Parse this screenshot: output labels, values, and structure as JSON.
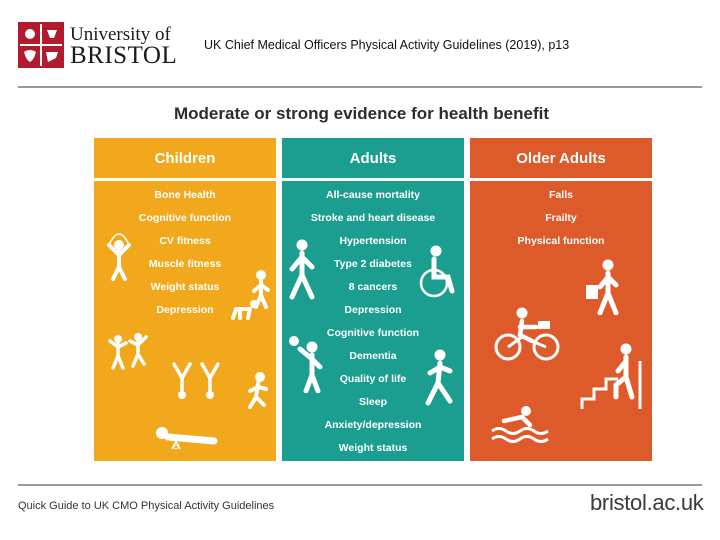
{
  "header": {
    "logo_line1": "University of",
    "logo_line2": "BRISTOL",
    "citation": "UK Chief Medical Officers Physical Activity Guidelines (2019), p13"
  },
  "infographic": {
    "title": "Moderate or strong evidence for health benefit",
    "columns": [
      {
        "heading": "Children",
        "color": "#f2a81d",
        "items": [
          "Bone Health",
          "Cognitive function",
          "CV fitness",
          "Muscle fitness",
          "Weight status",
          "Depression"
        ]
      },
      {
        "heading": "Adults",
        "color": "#1b9e8f",
        "items": [
          "All-cause mortality",
          "Stroke and heart disease",
          "Hypertension",
          "Type 2 diabetes",
          "8 cancers",
          "Depression",
          "Cognitive function",
          "Dementia",
          "Quality of life",
          "Sleep",
          "Anxiety/depression",
          "Weight status"
        ]
      },
      {
        "heading": "Older Adults",
        "color": "#dd5a2b",
        "items": [
          "Falls",
          "Frailty",
          "Physical function"
        ]
      }
    ]
  },
  "icons": {
    "children": [
      "skipping-child-icon",
      "walking-child-icon",
      "crawling-baby-icon",
      "dancing-children-icon",
      "cartwheel-children-icon",
      "running-child-icon",
      "tummy-time-baby-icon"
    ],
    "adults": [
      "walking-adult-icon",
      "wheelchair-user-icon",
      "ball-player-icon",
      "runner-icon"
    ],
    "older": [
      "shopping-walker-icon",
      "cyclist-icon",
      "stair-climber-icon",
      "swimmer-icon"
    ]
  },
  "footer": {
    "left": "Quick Guide to UK CMO Physical Activity Guidelines",
    "right": "bristol.ac.uk"
  }
}
